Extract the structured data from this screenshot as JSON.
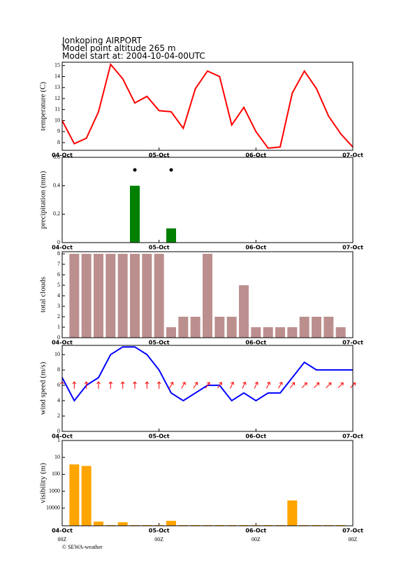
{
  "header": {
    "lines": [
      "Jonkoping AIRPORT",
      "Model point altitude 265 m",
      "Model start at: 2004-10-04-00UTC"
    ]
  },
  "footer": "© SEWA-weather",
  "chart_data": [
    {
      "type": "line",
      "ylabel": "temperature (C)",
      "x": [
        0,
        3,
        6,
        9,
        12,
        15,
        18,
        21,
        24,
        27,
        30,
        33,
        36,
        39,
        42,
        45,
        48,
        51,
        54,
        57,
        60,
        63,
        66,
        69,
        72
      ],
      "xlim": [
        0,
        72
      ],
      "xticks": [
        {
          "value": 0,
          "label": "04-Oct"
        },
        {
          "value": 24,
          "label": "05-Oct"
        },
        {
          "value": 48,
          "label": "06-Oct"
        },
        {
          "value": 72,
          "label": "07-Oct"
        }
      ],
      "ylim": [
        7.3,
        15.3
      ],
      "yticks": [
        8,
        9,
        10,
        11,
        12,
        13,
        14,
        15
      ],
      "series": [
        {
          "color": "#ff0000",
          "values": [
            10.0,
            7.9,
            8.4,
            10.8,
            15.1,
            13.8,
            11.6,
            12.2,
            10.9,
            10.8,
            9.3,
            12.9,
            14.5,
            14.0,
            9.6,
            11.2,
            9.0,
            7.5,
            7.6,
            12.5,
            14.5,
            12.9,
            10.4,
            8.8,
            7.6
          ]
        }
      ]
    },
    {
      "type": "bar",
      "ylabel": "precipitation (mm)",
      "x": [
        0,
        3,
        6,
        9,
        12,
        15,
        18,
        21,
        24,
        27,
        30,
        33,
        36,
        39,
        42,
        45,
        48,
        51,
        54,
        57,
        60,
        63,
        66,
        69,
        72
      ],
      "xlim": [
        0,
        72
      ],
      "xticks": [
        {
          "value": 0,
          "label": "04-Oct"
        },
        {
          "value": 24,
          "label": "05-Oct"
        },
        {
          "value": 48,
          "label": "06-Oct"
        },
        {
          "value": 72,
          "label": "07-Oct"
        }
      ],
      "ylim": [
        0,
        0.6
      ],
      "yticks": [
        0,
        0.2,
        0.4,
        0.6
      ],
      "series": [
        {
          "color": "#008000",
          "values": [
            0,
            0,
            0,
            0,
            0,
            0,
            0.4,
            0,
            0,
            0.1,
            0,
            0,
            0,
            0,
            0,
            0,
            0,
            0,
            0,
            0,
            0,
            0,
            0,
            0,
            0
          ]
        }
      ]
    },
    {
      "type": "bar",
      "ylabel": "total clouds",
      "x": [
        0,
        3,
        6,
        9,
        12,
        15,
        18,
        21,
        24,
        27,
        30,
        33,
        36,
        39,
        42,
        45,
        48,
        51,
        54,
        57,
        60,
        63,
        66,
        69,
        72
      ],
      "xlim": [
        0,
        72
      ],
      "xticks": [
        {
          "value": 0,
          "label": "04-Oct"
        },
        {
          "value": 24,
          "label": "05-Oct"
        },
        {
          "value": 48,
          "label": "06-Oct"
        },
        {
          "value": 72,
          "label": "07-Oct"
        }
      ],
      "ylim": [
        0,
        8.2
      ],
      "yticks": [
        0,
        1,
        2,
        3,
        4,
        5,
        6,
        7,
        8
      ],
      "series": [
        {
          "color": "#bc8f8f",
          "values": [
            null,
            8,
            8,
            8,
            8,
            8,
            8,
            8,
            8,
            1,
            2,
            2,
            8,
            2,
            2,
            5,
            1,
            1,
            1,
            1,
            2,
            2,
            2,
            1,
            null
          ]
        }
      ]
    },
    {
      "type": "line",
      "ylabel": "wind speed (m/s)",
      "x": [
        0,
        3,
        6,
        9,
        12,
        15,
        18,
        21,
        24,
        27,
        30,
        33,
        36,
        39,
        42,
        45,
        48,
        51,
        54,
        57,
        60,
        63,
        66,
        69,
        72
      ],
      "xlim": [
        0,
        72
      ],
      "xticks": [
        {
          "value": 0,
          "label": "04-Oct"
        },
        {
          "value": 24,
          "label": "05-Oct"
        },
        {
          "value": 48,
          "label": "06-Oct"
        },
        {
          "value": 72,
          "label": "07-Oct"
        }
      ],
      "ylim": [
        0,
        11.2
      ],
      "yticks": [
        0,
        2,
        4,
        6,
        8,
        10
      ],
      "series": [
        {
          "color": "#0000ff",
          "values": [
            7,
            4,
            6,
            7,
            10,
            11,
            11,
            10,
            8,
            5,
            4,
            5,
            6,
            6,
            4,
            5,
            4,
            5,
            5,
            7,
            9,
            8,
            8,
            8,
            8
          ]
        }
      ],
      "arrows": {
        "color": "#ff0000",
        "level": 6,
        "values": [
          0,
          0,
          0,
          0,
          0,
          0,
          0,
          0,
          0,
          30,
          30,
          35,
          35,
          35,
          25,
          25,
          25,
          25,
          30,
          40,
          45,
          45,
          45,
          45,
          45
        ]
      }
    },
    {
      "type": "bar",
      "ylabel": "visibility (m)",
      "log": true,
      "yreverse": true,
      "x": [
        0,
        3,
        6,
        9,
        12,
        15,
        18,
        21,
        24,
        27,
        30,
        33,
        36,
        39,
        42,
        45,
        48,
        51,
        54,
        57,
        60,
        63,
        66,
        69,
        72
      ],
      "xlim": [
        0,
        72
      ],
      "xticks": [
        {
          "value": 0,
          "label": "04-Oct"
        },
        {
          "value": 24,
          "label": "05-Oct"
        },
        {
          "value": 48,
          "label": "06-Oct"
        },
        {
          "value": 72,
          "label": "07-Oct"
        }
      ],
      "xsublabels": [
        "00Z",
        "00Z",
        "00Z",
        "00Z"
      ],
      "ylim": [
        1,
        110000
      ],
      "yticks": [
        1,
        10,
        100,
        1000,
        10000
      ],
      "series": [
        {
          "color": "#ffa500",
          "values": [
            null,
            26,
            32,
            62000,
            100000,
            68000,
            100000,
            100000,
            100000,
            56000,
            100000,
            100000,
            100000,
            100000,
            100000,
            100000,
            100000,
            100000,
            100000,
            3500,
            100000,
            100000,
            100000,
            100000,
            null
          ]
        }
      ]
    }
  ]
}
